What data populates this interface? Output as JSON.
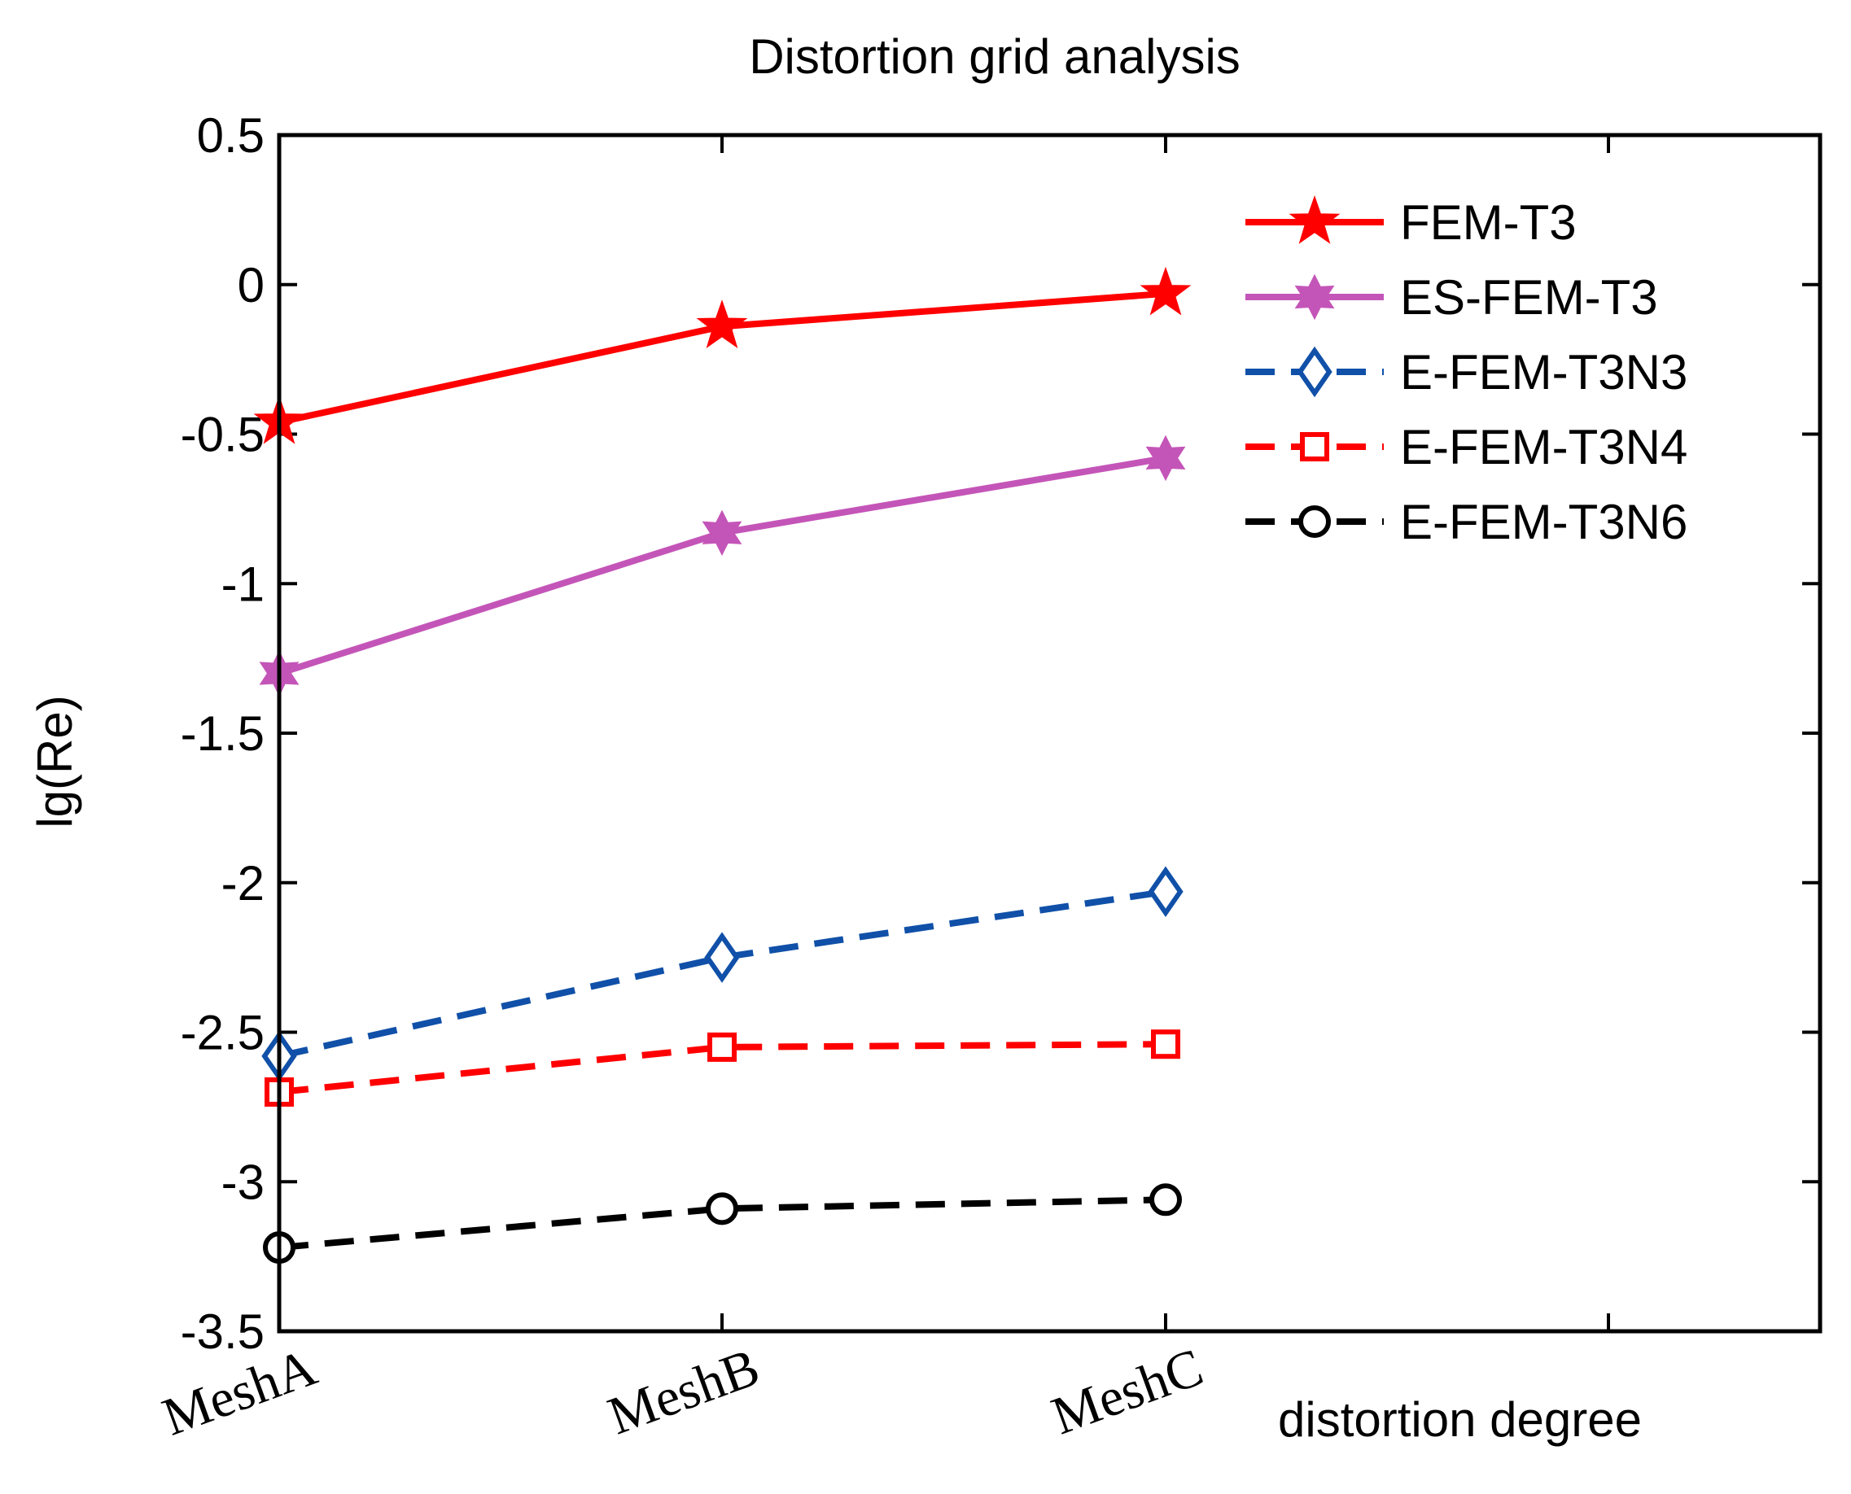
{
  "chart_data": {
    "type": "line",
    "title": "Distortion grid analysis",
    "xlabel": "distortion degree",
    "ylabel": "lg(Re)",
    "categories": [
      "MeshA",
      "MeshB",
      "MeshC"
    ],
    "ylim": [
      -3.5,
      0.5
    ],
    "yticks": [
      "0.5",
      "0",
      "-0.5",
      "-1",
      "-1.5",
      "-2",
      "-2.5",
      "-3",
      "-3.5"
    ],
    "grid": false,
    "legend_position": "top-right",
    "series": [
      {
        "name": "FEM-T3",
        "values": [
          -0.46,
          -0.14,
          -0.03
        ],
        "color": "#ff0000",
        "dashed": false,
        "marker": "star"
      },
      {
        "name": "ES-FEM-T3",
        "values": [
          -1.3,
          -0.83,
          -0.58
        ],
        "color": "#c455b8",
        "dashed": false,
        "marker": "hexagram"
      },
      {
        "name": "E-FEM-T3N3",
        "values": [
          -2.58,
          -2.25,
          -2.03
        ],
        "color": "#1050a8",
        "dashed": true,
        "marker": "diamond"
      },
      {
        "name": "E-FEM-T3N4",
        "values": [
          -2.7,
          -2.55,
          -2.54
        ],
        "color": "#ff0000",
        "dashed": true,
        "marker": "square"
      },
      {
        "name": "E-FEM-T3N6",
        "values": [
          -3.22,
          -3.09,
          -3.06
        ],
        "color": "#000000",
        "dashed": true,
        "marker": "circle"
      }
    ]
  }
}
